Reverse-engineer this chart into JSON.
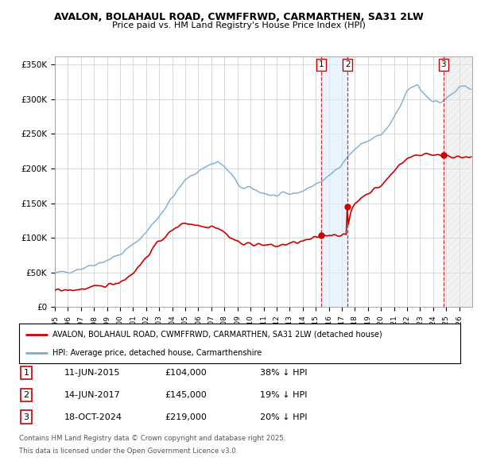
{
  "title1": "AVALON, BOLAHAUL ROAD, CWMFFRWD, CARMARTHEN, SA31 2LW",
  "title2": "Price paid vs. HM Land Registry's House Price Index (HPI)",
  "ylabel_ticks": [
    "£0",
    "£50K",
    "£100K",
    "£150K",
    "£200K",
    "£250K",
    "£300K",
    "£350K"
  ],
  "y_values": [
    0,
    50000,
    100000,
    150000,
    200000,
    250000,
    300000,
    350000
  ],
  "ylim": [
    0,
    362000
  ],
  "xlim_start": 1995.0,
  "xlim_end": 2027.0,
  "sale1_date": 2015.44,
  "sale1_price": 104000,
  "sale2_date": 2017.44,
  "sale2_price": 145000,
  "sale3_date": 2024.79,
  "sale3_price": 219000,
  "legend_red_label": "AVALON, BOLAHAUL ROAD, CWMFFRWD, CARMARTHEN, SA31 2LW (detached house)",
  "legend_blue_label": "HPI: Average price, detached house, Carmarthenshire",
  "table_rows": [
    [
      "1",
      "11-JUN-2015",
      "£104,000",
      "38% ↓ HPI"
    ],
    [
      "2",
      "14-JUN-2017",
      "£145,000",
      "19% ↓ HPI"
    ],
    [
      "3",
      "18-OCT-2024",
      "£219,000",
      "20% ↓ HPI"
    ]
  ],
  "footnote1": "Contains HM Land Registry data © Crown copyright and database right 2025.",
  "footnote2": "This data is licensed under the Open Government Licence v3.0.",
  "red_color": "#cc0000",
  "blue_color": "#7aadd4",
  "shade_color": "#ddeeff",
  "grid_color": "#cccccc",
  "bg_color": "#ffffff"
}
